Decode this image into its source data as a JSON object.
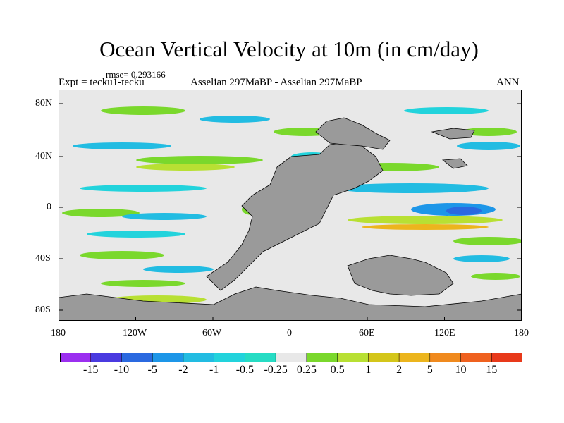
{
  "title": "Ocean Vertical Velocity at 10m (in cm/day)",
  "rmse": "rmse= 0.293166",
  "expt": "Expt = tecku1-tecku",
  "subtitle": "Asselian 297MaBP - Asselian 297MaBP",
  "season": "ANN",
  "axes": {
    "x_ticks": [
      "180",
      "120W",
      "60W",
      "0",
      "60E",
      "120E",
      "180"
    ],
    "y_ticks": [
      "80N",
      "40N",
      "0",
      "40S",
      "80S"
    ]
  },
  "colorbar": {
    "labels": [
      "-15",
      "-10",
      "-5",
      "-2",
      "-1",
      "-0.5",
      "-0.25",
      "0.25",
      "0.5",
      "1",
      "2",
      "5",
      "10",
      "15"
    ],
    "colors": [
      "#9b2ff0",
      "#4a3ae0",
      "#2a69e0",
      "#1d96e8",
      "#22bce2",
      "#22d3dc",
      "#26dcc4",
      "#e8e8e8",
      "#7ad82c",
      "#b8e033",
      "#d4c61a",
      "#ecb51d",
      "#f08a1e",
      "#ef611f",
      "#e8391a"
    ]
  },
  "colors": {
    "land": "#9a9a9a",
    "ocean_neutral": "#e8e8e8"
  }
}
